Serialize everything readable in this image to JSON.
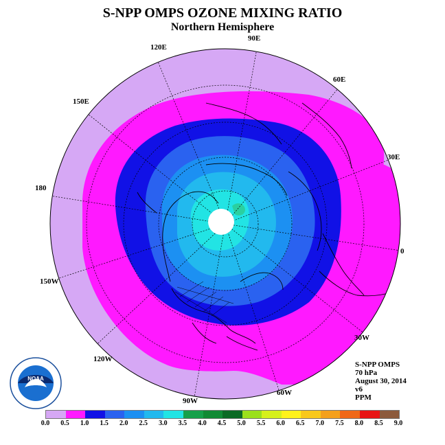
{
  "header": {
    "title": "S-NPP OMPS OZONE MIXING RATIO",
    "subtitle": "Northern Hemisphere"
  },
  "map": {
    "projection": "north polar stereographic",
    "hemisphere": "Northern",
    "longitude_labels": [
      "90E",
      "60E",
      "30E",
      "0",
      "30W",
      "60W",
      "90W",
      "120W",
      "150W",
      "180",
      "150E",
      "120E"
    ],
    "regions": [
      {
        "name": "outer-ring",
        "range": "0.5-1.0",
        "color": "#d6a8f5"
      },
      {
        "name": "magenta-band",
        "range": "1.0-1.5",
        "color": "#ff19ff"
      },
      {
        "name": "navy-band",
        "range": "1.5-2.0",
        "color": "#1111e6"
      },
      {
        "name": "blue-band",
        "range": "2.0-2.5",
        "color": "#2a62f0"
      },
      {
        "name": "lightblue-band",
        "range": "2.5-3.0",
        "color": "#1c90f2"
      },
      {
        "name": "sky-band",
        "range": "3.0-3.5",
        "color": "#22b9ee"
      },
      {
        "name": "cyan-core",
        "range": "3.5-4.0",
        "color": "#22e4e4"
      }
    ],
    "missing_data_color": "#ffffff"
  },
  "info": {
    "instrument": "S-NPP OMPS",
    "level": "70 hPa",
    "date": "August 30, 2014",
    "version": "v6",
    "units": "PPM"
  },
  "colorbar": {
    "ticks": [
      "0.0",
      "0.5",
      "1.0",
      "1.5",
      "2.0",
      "2.5",
      "3.0",
      "3.5",
      "4.0",
      "4.5",
      "5.0",
      "5.5",
      "6.0",
      "6.5",
      "7.0",
      "7.5",
      "8.0",
      "8.5",
      "9.0"
    ],
    "colors": [
      "#c08ef2",
      "#d6a8f5",
      "#ff19ff",
      "#1111e6",
      "#2a62f0",
      "#1c90f2",
      "#22b9ee",
      "#22e4e4",
      "#16a04a",
      "#118a34",
      "#0b6a24",
      "#9be01c",
      "#d6f01c",
      "#fff21c",
      "#f8c81c",
      "#f4a01c",
      "#f06818",
      "#e81414",
      "#8c5a3c"
    ]
  },
  "logo": {
    "text": "NOAA",
    "ring_text": "NATIONAL OCEANIC AND ATMOSPHERIC ADMINISTRATION · U.S. DEPARTMENT OF COMMERCE"
  }
}
